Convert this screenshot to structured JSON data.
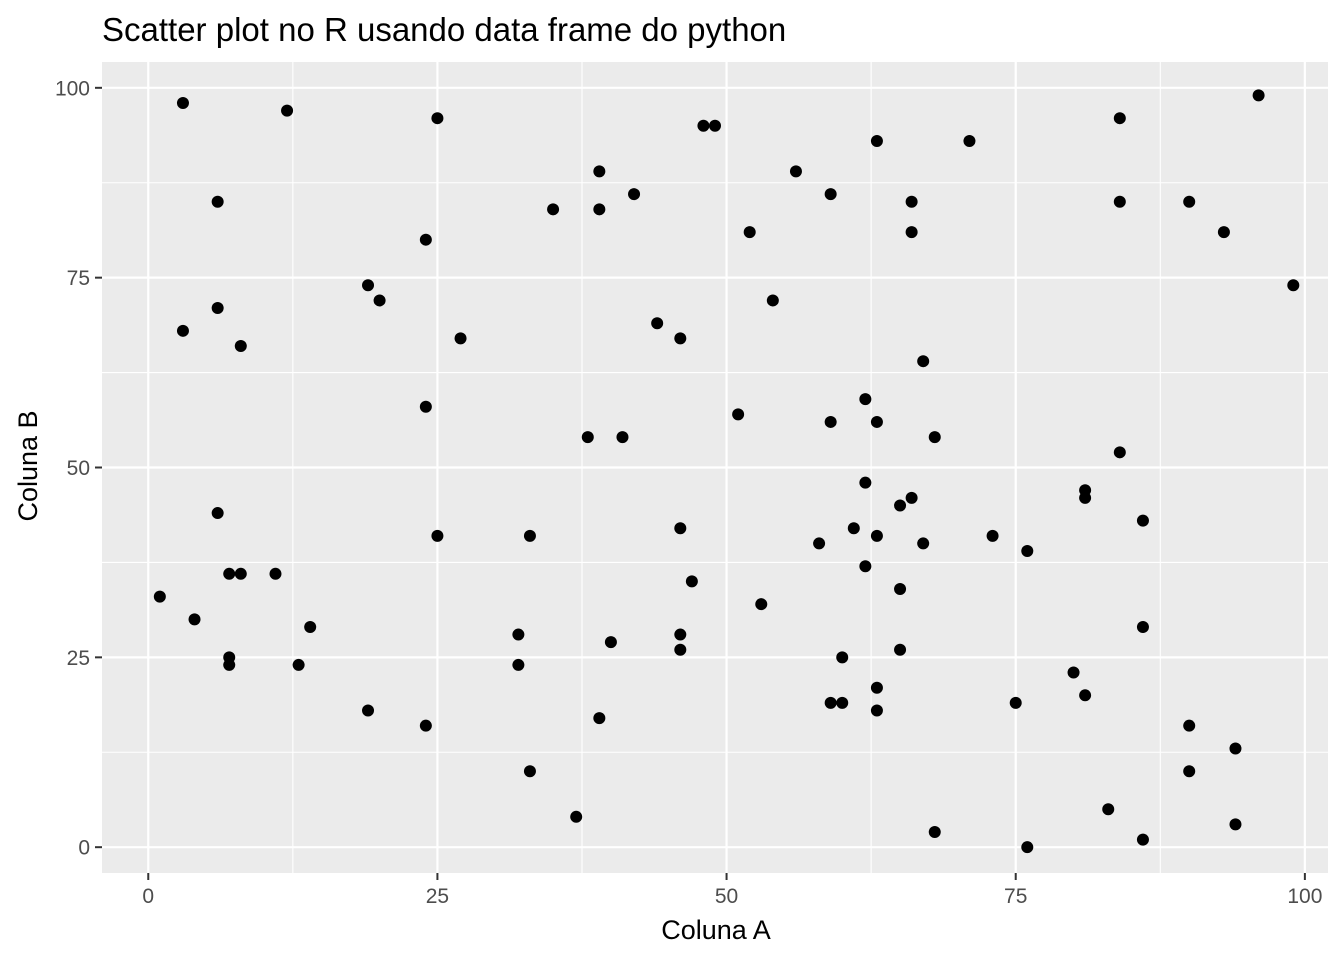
{
  "chart_data": {
    "type": "scatter",
    "title": "Scatter plot no R usando data frame do python",
    "xlabel": "Coluna A",
    "ylabel": "Coluna B",
    "xlim": [
      -4,
      102
    ],
    "ylim": [
      -3.4,
      103.4
    ],
    "x_ticks": [
      0,
      25,
      50,
      75,
      100
    ],
    "y_ticks": [
      0,
      25,
      50,
      75,
      100
    ],
    "x_tick_labels": [
      "0",
      "25",
      "50",
      "75",
      "100"
    ],
    "y_tick_labels": [
      "0",
      "25",
      "50",
      "75",
      "100"
    ],
    "grid": true,
    "legend": "none",
    "colors": {
      "panel_background": "#ebebeb",
      "grid_line": "#ffffff",
      "point": "#000000",
      "tick_label": "#4d4d4d"
    },
    "points": [
      [
        3,
        98
      ],
      [
        12,
        97
      ],
      [
        25,
        96
      ],
      [
        48,
        95
      ],
      [
        49,
        95
      ],
      [
        96,
        99
      ],
      [
        84,
        96
      ],
      [
        63,
        93
      ],
      [
        71,
        93
      ],
      [
        39,
        89
      ],
      [
        56,
        89
      ],
      [
        6,
        85
      ],
      [
        42,
        86
      ],
      [
        59,
        86
      ],
      [
        66,
        85
      ],
      [
        84,
        85
      ],
      [
        90,
        85
      ],
      [
        35,
        84
      ],
      [
        39,
        84
      ],
      [
        52,
        81
      ],
      [
        66,
        81
      ],
      [
        93,
        81
      ],
      [
        24,
        80
      ],
      [
        19,
        74
      ],
      [
        20,
        72
      ],
      [
        54,
        72
      ],
      [
        99,
        74
      ],
      [
        6,
        71
      ],
      [
        44,
        69
      ],
      [
        3,
        68
      ],
      [
        27,
        67
      ],
      [
        46,
        67
      ],
      [
        8,
        66
      ],
      [
        67,
        64
      ],
      [
        62,
        59
      ],
      [
        24,
        58
      ],
      [
        51,
        57
      ],
      [
        59,
        56
      ],
      [
        63,
        56
      ],
      [
        38,
        54
      ],
      [
        41,
        54
      ],
      [
        68,
        54
      ],
      [
        84,
        52
      ],
      [
        62,
        48
      ],
      [
        81,
        47
      ],
      [
        66,
        46
      ],
      [
        81,
        46
      ],
      [
        65,
        45
      ],
      [
        6,
        44
      ],
      [
        86,
        43
      ],
      [
        46,
        42
      ],
      [
        61,
        42
      ],
      [
        25,
        41
      ],
      [
        33,
        41
      ],
      [
        63,
        41
      ],
      [
        73,
        41
      ],
      [
        58,
        40
      ],
      [
        67,
        40
      ],
      [
        76,
        39
      ],
      [
        62,
        37
      ],
      [
        7,
        36
      ],
      [
        8,
        36
      ],
      [
        11,
        36
      ],
      [
        47,
        35
      ],
      [
        65,
        34
      ],
      [
        1,
        33
      ],
      [
        53,
        32
      ],
      [
        4,
        30
      ],
      [
        14,
        29
      ],
      [
        86,
        29
      ],
      [
        32,
        28
      ],
      [
        46,
        28
      ],
      [
        40,
        27
      ],
      [
        46,
        26
      ],
      [
        65,
        26
      ],
      [
        7,
        25
      ],
      [
        60,
        25
      ],
      [
        7,
        24
      ],
      [
        13,
        24
      ],
      [
        32,
        24
      ],
      [
        80,
        23
      ],
      [
        63,
        21
      ],
      [
        81,
        20
      ],
      [
        59,
        19
      ],
      [
        60,
        19
      ],
      [
        75,
        19
      ],
      [
        19,
        18
      ],
      [
        63,
        18
      ],
      [
        39,
        17
      ],
      [
        24,
        16
      ],
      [
        90,
        16
      ],
      [
        94,
        13
      ],
      [
        33,
        10
      ],
      [
        90,
        10
      ],
      [
        83,
        5
      ],
      [
        37,
        4
      ],
      [
        94,
        3
      ],
      [
        68,
        2
      ],
      [
        86,
        1
      ],
      [
        76,
        0
      ]
    ]
  }
}
